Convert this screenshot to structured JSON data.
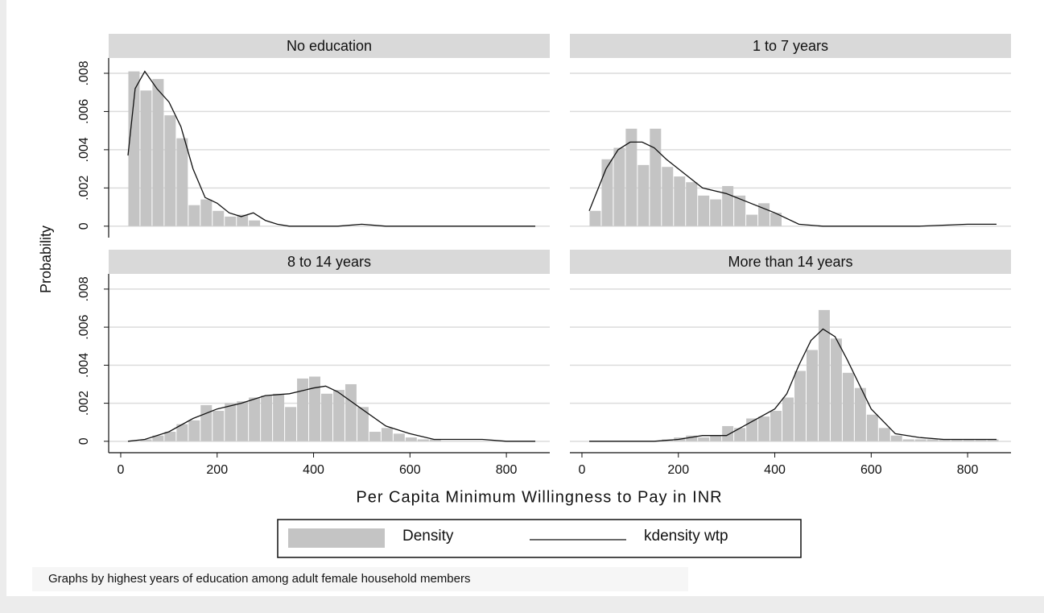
{
  "figure": {
    "xlabel": "Per Capita Minimum Willingness to Pay in INR",
    "ylabel": "Probability",
    "xlim": [
      -25,
      890
    ],
    "xticks": [
      0,
      200,
      400,
      600,
      800
    ],
    "ylim": [
      -0.0006,
      0.0088
    ],
    "yticks": [
      0,
      {
        "value": 0.002,
        "label": ".002"
      },
      {
        "value": 0.004,
        "label": ".004"
      },
      {
        "value": 0.006,
        "label": ".006"
      },
      {
        "value": 0.008,
        "label": ".008"
      }
    ],
    "grid": true,
    "legend": [
      {
        "name": "Density",
        "color": "#c4c4c4"
      },
      {
        "name": "kdensity wtp",
        "color": "#111111"
      }
    ],
    "note": "Graphs by highest years of education among adult female household members"
  },
  "chart_data": [
    {
      "type": "histogram",
      "title": "No education",
      "bins": [
        15,
        40,
        65,
        90,
        115,
        140,
        165,
        190,
        215,
        240,
        265,
        290,
        315,
        340,
        365,
        390,
        415,
        440,
        465,
        490,
        515,
        540,
        565,
        590,
        615,
        640,
        665,
        690,
        715,
        740,
        765,
        790,
        815,
        840,
        865
      ],
      "values": [
        0.0081,
        0.0071,
        0.0077,
        0.0058,
        0.0046,
        0.0011,
        0.0014,
        0.0008,
        0.0005,
        0.0006,
        0.0003,
        0,
        0,
        0,
        0,
        0,
        0,
        0,
        0,
        0,
        0,
        0,
        0,
        0,
        0,
        0,
        0,
        0,
        0,
        0,
        0,
        0,
        0,
        0
      ],
      "line": {
        "x": [
          15,
          30,
          50,
          75,
          100,
          125,
          150,
          175,
          200,
          225,
          250,
          275,
          300,
          325,
          350,
          400,
          450,
          500,
          550,
          600,
          650,
          700,
          750,
          800,
          860
        ],
        "y": [
          0.0037,
          0.0072,
          0.0081,
          0.0072,
          0.0065,
          0.0052,
          0.003,
          0.0015,
          0.0012,
          0.0007,
          0.0005,
          0.0007,
          0.0003,
          0.0001,
          0,
          0,
          0,
          0.0001,
          0,
          0,
          0,
          0,
          0,
          0,
          0
        ]
      }
    },
    {
      "type": "histogram",
      "title": "1 to 7 years",
      "bins": [
        15,
        40,
        65,
        90,
        115,
        140,
        165,
        190,
        215,
        240,
        265,
        290,
        315,
        340,
        365,
        390,
        415,
        440,
        465,
        490,
        515,
        540,
        565,
        590,
        615,
        640,
        665,
        690,
        715,
        740,
        765,
        790,
        815,
        840,
        865
      ],
      "values": [
        0.0008,
        0.0035,
        0.0041,
        0.0051,
        0.0032,
        0.0051,
        0.0031,
        0.0026,
        0.0023,
        0.0016,
        0.0014,
        0.0021,
        0.0016,
        0.0006,
        0.0012,
        0.0007,
        0,
        0,
        0,
        0,
        0,
        0,
        0,
        0,
        0,
        0,
        0,
        0,
        0,
        0,
        0,
        0,
        0,
        0
      ],
      "line": {
        "x": [
          15,
          50,
          75,
          100,
          125,
          150,
          175,
          200,
          250,
          300,
          350,
          400,
          450,
          500,
          600,
          700,
          800,
          860
        ],
        "y": [
          0.0008,
          0.003,
          0.004,
          0.0044,
          0.0044,
          0.0041,
          0.0035,
          0.003,
          0.002,
          0.0017,
          0.0012,
          0.0007,
          0.0001,
          0,
          0,
          0,
          0.0001,
          0.0001
        ]
      }
    },
    {
      "type": "histogram",
      "title": "8 to 14 years",
      "bins": [
        15,
        40,
        65,
        90,
        115,
        140,
        165,
        190,
        215,
        240,
        265,
        290,
        315,
        340,
        365,
        390,
        415,
        440,
        465,
        490,
        515,
        540,
        565,
        590,
        615,
        640,
        665,
        690,
        715,
        740,
        765,
        790,
        815,
        840,
        865
      ],
      "values": [
        0,
        0.0001,
        0.0003,
        0.0005,
        0.0009,
        0.0011,
        0.0019,
        0.0016,
        0.002,
        0.0021,
        0.0023,
        0.0024,
        0.0025,
        0.0018,
        0.0033,
        0.0034,
        0.0025,
        0.0027,
        0.003,
        0.0018,
        0.0005,
        0.0007,
        0.0004,
        0.0002,
        0.0001,
        0.0001,
        0,
        0,
        0,
        0,
        0,
        0,
        0,
        0
      ],
      "line": {
        "x": [
          15,
          50,
          100,
          150,
          200,
          250,
          300,
          350,
          400,
          425,
          450,
          500,
          550,
          600,
          650,
          700,
          750,
          800,
          860
        ],
        "y": [
          0,
          0.0001,
          0.0005,
          0.0012,
          0.0017,
          0.002,
          0.0024,
          0.0025,
          0.0028,
          0.0029,
          0.0026,
          0.0017,
          0.0008,
          0.0004,
          0.0001,
          0.0001,
          0.0001,
          0,
          0
        ]
      }
    },
    {
      "type": "histogram",
      "title": "More than 14 years",
      "bins": [
        15,
        40,
        65,
        90,
        115,
        140,
        165,
        190,
        215,
        240,
        265,
        290,
        315,
        340,
        365,
        390,
        415,
        440,
        465,
        490,
        515,
        540,
        565,
        590,
        615,
        640,
        665,
        690,
        715,
        740,
        765,
        790,
        815,
        840,
        865
      ],
      "values": [
        0,
        0,
        0,
        0,
        0,
        0,
        0.0001,
        0.0002,
        0.0003,
        0.0002,
        0.0003,
        0.0008,
        0.0007,
        0.0012,
        0.0013,
        0.0016,
        0.0023,
        0.0037,
        0.0048,
        0.0069,
        0.0054,
        0.0036,
        0.0028,
        0.0014,
        0.0007,
        0.0003,
        0.0001,
        0.0001,
        0.0001,
        0.0001,
        0.0001,
        0.0001,
        0.0001,
        0.0001
      ],
      "line": {
        "x": [
          15,
          100,
          150,
          200,
          250,
          300,
          350,
          400,
          425,
          450,
          475,
          500,
          525,
          550,
          575,
          600,
          650,
          700,
          750,
          800,
          860
        ],
        "y": [
          0,
          0,
          0,
          0.0001,
          0.0003,
          0.0003,
          0.001,
          0.0017,
          0.0025,
          0.004,
          0.0053,
          0.0059,
          0.0055,
          0.0043,
          0.003,
          0.0017,
          0.0004,
          0.0002,
          0.0001,
          0.0001,
          0.0001
        ]
      }
    }
  ]
}
